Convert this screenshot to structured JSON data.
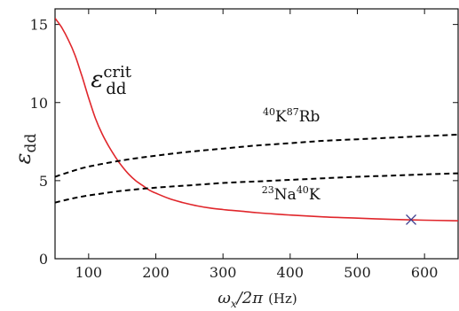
{
  "chart_data": {
    "type": "line",
    "xlabel": {
      "main": "ω",
      "sub": "x",
      "rest": "/2π",
      "unit": "(Hz)"
    },
    "ylabel": {
      "main": "ε",
      "sub": "dd"
    },
    "xlim": [
      50,
      650
    ],
    "ylim": [
      0,
      16
    ],
    "xticks": [
      100,
      200,
      300,
      400,
      500,
      600
    ],
    "yticks": [
      0,
      5,
      10,
      15
    ],
    "grid": false,
    "series": [
      {
        "color": "#e0262b",
        "style": "solid",
        "x": [
          50,
          60,
          70,
          80,
          90,
          100,
          110,
          120,
          130,
          140,
          150,
          160,
          170,
          180,
          190,
          200,
          220,
          240,
          260,
          280,
          300,
          325,
          350,
          375,
          400,
          450,
          500,
          550,
          600,
          650
        ],
        "y": [
          15.4,
          14.8,
          14.0,
          13.0,
          11.7,
          10.3,
          9.0,
          8.0,
          7.2,
          6.5,
          5.9,
          5.4,
          5.0,
          4.7,
          4.4,
          4.2,
          3.85,
          3.6,
          3.4,
          3.25,
          3.15,
          3.05,
          2.95,
          2.87,
          2.8,
          2.68,
          2.6,
          2.52,
          2.47,
          2.43
        ]
      },
      {
        "color": "#000000",
        "style": "dashed",
        "x": [
          50,
          75,
          100,
          150,
          200,
          250,
          300,
          350,
          400,
          450,
          500,
          550,
          600,
          650
        ],
        "y": [
          5.25,
          5.6,
          5.9,
          6.3,
          6.6,
          6.85,
          7.05,
          7.25,
          7.4,
          7.55,
          7.65,
          7.75,
          7.85,
          7.95
        ]
      },
      {
        "color": "#000000",
        "style": "dashed",
        "x": [
          50,
          75,
          100,
          150,
          200,
          250,
          300,
          350,
          400,
          450,
          500,
          550,
          600,
          650
        ],
        "y": [
          3.6,
          3.85,
          4.05,
          4.35,
          4.55,
          4.7,
          4.85,
          4.95,
          5.05,
          5.15,
          5.25,
          5.32,
          5.4,
          5.47
        ]
      }
    ],
    "marker": {
      "symbol": "cross",
      "x": 580,
      "y": 2.5,
      "color": "#3a3a8c"
    },
    "annotations": [
      {
        "id": "crit",
        "main": "ε",
        "sub": "dd",
        "sup": "crit",
        "at": [
          110,
          11.0
        ]
      },
      {
        "id": "krb",
        "sup1": "40",
        "el1": "K",
        "sup2": "87",
        "el2": "Rb",
        "at": [
          465,
          9.2
        ]
      },
      {
        "id": "nak",
        "sup1": "23",
        "el1": "Na",
        "sup2": "40",
        "el2": "K",
        "at": [
          470,
          4.2
        ]
      }
    ]
  }
}
